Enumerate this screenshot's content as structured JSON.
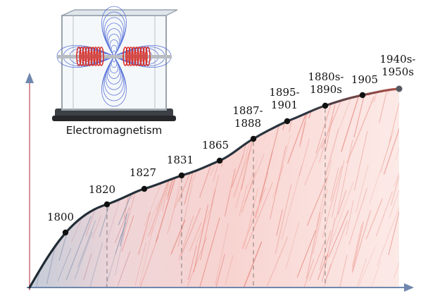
{
  "caption": "Electromagnetism",
  "colors": {
    "curve": "#1f2a33",
    "curve_end": "#b0524a",
    "axis": "#6f87ad",
    "fill_light": "#f3b6ad",
    "fill_mid": "#e98c84",
    "fill_blue": "#8f9fb8",
    "dot": "#111111"
  },
  "timeline": [
    {
      "lines": [
        "1800"
      ]
    },
    {
      "lines": [
        "1820"
      ]
    },
    {
      "lines": [
        "1827"
      ]
    },
    {
      "lines": [
        "1831"
      ]
    },
    {
      "lines": [
        "1865"
      ]
    },
    {
      "lines": [
        "1887-",
        "1888"
      ]
    },
    {
      "lines": [
        "1895-",
        "1901"
      ]
    },
    {
      "lines": [
        "1880s-",
        "1890s"
      ]
    },
    {
      "lines": [
        "1905"
      ]
    },
    {
      "lines": [
        "1940s-",
        "1950s"
      ]
    }
  ],
  "illustration": {
    "subject": "coil-magnetic-field-cube",
    "icon": "electromagnet-illustration"
  }
}
